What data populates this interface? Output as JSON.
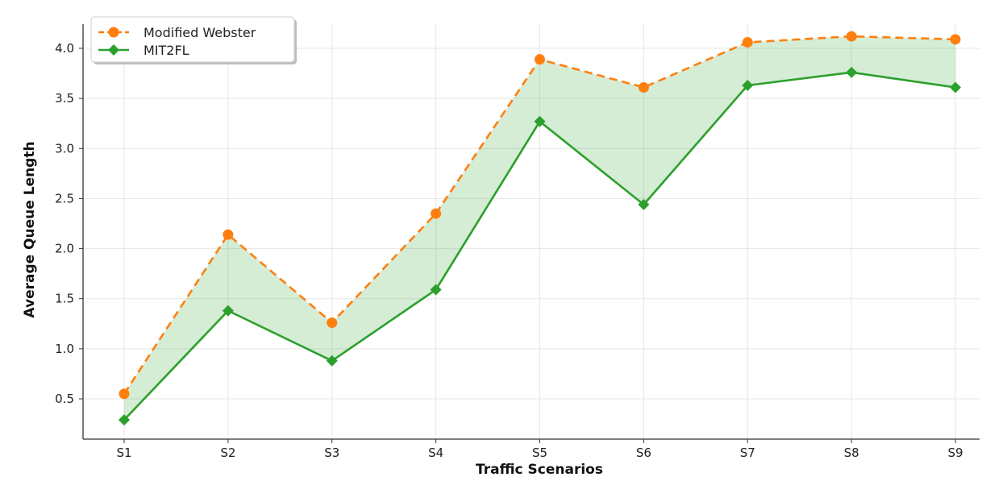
{
  "chart_data": {
    "type": "line",
    "title": "",
    "xlabel": "Traffic Scenarios",
    "ylabel": "Average Queue Length",
    "categories": [
      "S1",
      "S2",
      "S3",
      "S4",
      "S5",
      "S6",
      "S7",
      "S8",
      "S9"
    ],
    "ylim": [
      0.1,
      4.2
    ],
    "yticks": [
      0.5,
      1.0,
      1.5,
      2.0,
      2.5,
      3.0,
      3.5,
      4.0
    ],
    "ytick_labels": [
      "0.5",
      "1.0",
      "1.5",
      "2.0",
      "2.5",
      "3.0",
      "3.5",
      "4.0"
    ],
    "grid": true,
    "legend_position": "top-left",
    "fill_between_series": true,
    "series": [
      {
        "name": "Modified Webster",
        "values": [
          0.55,
          2.14,
          1.26,
          2.35,
          3.89,
          3.61,
          4.06,
          4.12,
          4.09
        ],
        "color": "#ff7f0e",
        "line_style": "dashed",
        "marker": "circle"
      },
      {
        "name": "MIT2FL",
        "values": [
          0.29,
          1.38,
          0.88,
          1.59,
          3.27,
          2.44,
          3.63,
          3.76,
          3.61
        ],
        "color": "#2ca02c",
        "line_style": "solid",
        "marker": "diamond"
      }
    ],
    "fill_color": "#2ca02c"
  }
}
